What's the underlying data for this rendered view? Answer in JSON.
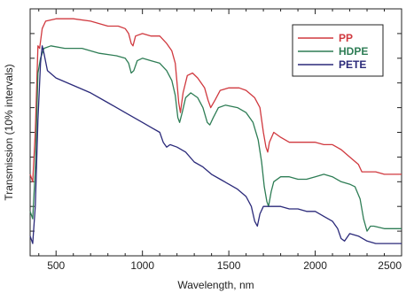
{
  "chart_data": {
    "type": "line",
    "title": "",
    "xlabel": "Wavelength, nm",
    "ylabel": "Transmission (10% intervals)",
    "xlim": [
      350,
      2500
    ],
    "x_ticks": [
      500,
      1000,
      1500,
      2000,
      2500
    ],
    "y_ticks": 10,
    "y_tick_labels": false,
    "grid": false,
    "legend_position": "top-right",
    "series": [
      {
        "name": "PP",
        "color": "#d0393f",
        "points": [
          [
            350,
            33
          ],
          [
            365,
            30
          ],
          [
            380,
            50
          ],
          [
            395,
            85
          ],
          [
            405,
            84
          ],
          [
            420,
            92
          ],
          [
            440,
            95
          ],
          [
            500,
            96
          ],
          [
            600,
            96
          ],
          [
            700,
            95
          ],
          [
            800,
            93
          ],
          [
            860,
            93
          ],
          [
            900,
            92
          ],
          [
            920,
            90
          ],
          [
            935,
            86
          ],
          [
            945,
            85
          ],
          [
            960,
            89
          ],
          [
            1000,
            90
          ],
          [
            1050,
            89
          ],
          [
            1100,
            89
          ],
          [
            1140,
            86
          ],
          [
            1170,
            83
          ],
          [
            1190,
            78
          ],
          [
            1200,
            70
          ],
          [
            1210,
            62
          ],
          [
            1220,
            58
          ],
          [
            1235,
            66
          ],
          [
            1260,
            73
          ],
          [
            1290,
            74
          ],
          [
            1320,
            72
          ],
          [
            1360,
            68
          ],
          [
            1380,
            63
          ],
          [
            1395,
            60
          ],
          [
            1420,
            63
          ],
          [
            1450,
            67
          ],
          [
            1500,
            68
          ],
          [
            1560,
            68
          ],
          [
            1600,
            67
          ],
          [
            1650,
            64
          ],
          [
            1680,
            60
          ],
          [
            1700,
            50
          ],
          [
            1715,
            44
          ],
          [
            1725,
            42
          ],
          [
            1735,
            46
          ],
          [
            1760,
            50
          ],
          [
            1800,
            48
          ],
          [
            1850,
            46
          ],
          [
            1900,
            46
          ],
          [
            1950,
            46
          ],
          [
            2000,
            46
          ],
          [
            2050,
            45
          ],
          [
            2100,
            45
          ],
          [
            2150,
            43
          ],
          [
            2200,
            40
          ],
          [
            2250,
            37
          ],
          [
            2270,
            34
          ],
          [
            2300,
            34
          ],
          [
            2350,
            34
          ],
          [
            2400,
            33
          ],
          [
            2450,
            33
          ],
          [
            2500,
            33
          ]
        ]
      },
      {
        "name": "HDPE",
        "color": "#2e7d55",
        "points": [
          [
            350,
            18
          ],
          [
            365,
            15
          ],
          [
            380,
            35
          ],
          [
            395,
            74
          ],
          [
            410,
            80
          ],
          [
            430,
            84
          ],
          [
            470,
            85
          ],
          [
            550,
            84
          ],
          [
            650,
            84
          ],
          [
            750,
            82
          ],
          [
            850,
            81
          ],
          [
            900,
            80
          ],
          [
            920,
            78
          ],
          [
            935,
            74
          ],
          [
            950,
            75
          ],
          [
            970,
            79
          ],
          [
            1000,
            80
          ],
          [
            1050,
            79
          ],
          [
            1100,
            78
          ],
          [
            1140,
            75
          ],
          [
            1170,
            71
          ],
          [
            1190,
            65
          ],
          [
            1205,
            56
          ],
          [
            1215,
            54
          ],
          [
            1230,
            58
          ],
          [
            1250,
            64
          ],
          [
            1280,
            66
          ],
          [
            1320,
            64
          ],
          [
            1350,
            60
          ],
          [
            1375,
            54
          ],
          [
            1390,
            53
          ],
          [
            1410,
            56
          ],
          [
            1440,
            60
          ],
          [
            1480,
            61
          ],
          [
            1550,
            60
          ],
          [
            1600,
            58
          ],
          [
            1640,
            54
          ],
          [
            1670,
            47
          ],
          [
            1690,
            38
          ],
          [
            1705,
            28
          ],
          [
            1720,
            22
          ],
          [
            1730,
            20
          ],
          [
            1745,
            26
          ],
          [
            1760,
            30
          ],
          [
            1800,
            32
          ],
          [
            1850,
            32
          ],
          [
            1900,
            31
          ],
          [
            1950,
            31
          ],
          [
            2000,
            32
          ],
          [
            2050,
            33
          ],
          [
            2100,
            32
          ],
          [
            2150,
            30
          ],
          [
            2200,
            29
          ],
          [
            2230,
            28
          ],
          [
            2260,
            23
          ],
          [
            2280,
            15
          ],
          [
            2300,
            10
          ],
          [
            2320,
            12
          ],
          [
            2340,
            12
          ],
          [
            2400,
            11
          ],
          [
            2450,
            11
          ],
          [
            2500,
            11
          ]
        ]
      },
      {
        "name": "PETE",
        "color": "#2b2a7a",
        "points": [
          [
            350,
            8
          ],
          [
            365,
            5
          ],
          [
            380,
            20
          ],
          [
            395,
            55
          ],
          [
            410,
            78
          ],
          [
            420,
            85
          ],
          [
            430,
            82
          ],
          [
            450,
            75
          ],
          [
            500,
            72
          ],
          [
            600,
            69
          ],
          [
            700,
            66
          ],
          [
            800,
            62
          ],
          [
            900,
            58
          ],
          [
            1000,
            54
          ],
          [
            1050,
            52
          ],
          [
            1100,
            50
          ],
          [
            1120,
            46
          ],
          [
            1140,
            44
          ],
          [
            1160,
            45
          ],
          [
            1200,
            44
          ],
          [
            1250,
            42
          ],
          [
            1300,
            38
          ],
          [
            1350,
            36
          ],
          [
            1400,
            33
          ],
          [
            1450,
            31
          ],
          [
            1500,
            29
          ],
          [
            1550,
            27
          ],
          [
            1600,
            24
          ],
          [
            1630,
            20
          ],
          [
            1650,
            14
          ],
          [
            1665,
            12
          ],
          [
            1680,
            17
          ],
          [
            1700,
            20
          ],
          [
            1750,
            20
          ],
          [
            1800,
            20
          ],
          [
            1850,
            19
          ],
          [
            1900,
            19
          ],
          [
            1950,
            18
          ],
          [
            2000,
            18
          ],
          [
            2050,
            16
          ],
          [
            2100,
            14
          ],
          [
            2130,
            11
          ],
          [
            2150,
            7
          ],
          [
            2170,
            6
          ],
          [
            2200,
            9
          ],
          [
            2250,
            8
          ],
          [
            2300,
            6
          ],
          [
            2350,
            5
          ],
          [
            2400,
            5
          ],
          [
            2450,
            5
          ],
          [
            2500,
            5
          ]
        ]
      }
    ]
  }
}
